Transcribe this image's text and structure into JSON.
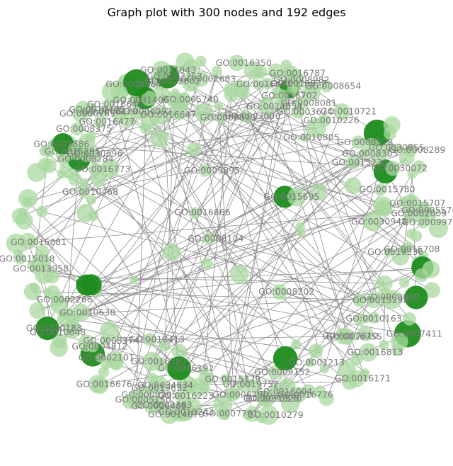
{
  "figure": {
    "title": "Graph plot with 300 nodes and 192 edges",
    "node_count": 300,
    "edge_count": 192,
    "node_color_light": "#a9d8a0",
    "node_color_dark": "#1e8c1e",
    "edge_color": "#8c8c8c",
    "label_color": "#7a7a7a"
  },
  "visible_labels": [
    "GO:0015695",
    "GO:0009895",
    "GO:0016866",
    "GO:0008104",
    "GO:0008202",
    "GO:0003674",
    "GO:0002009",
    "GO:0008081",
    "GO:0016773",
    "GO:0004812",
    "GO:0015179",
    "GO:0010638",
    "GO:0008375",
    "GO:0008092",
    "GO:0030855",
    "GO:0008982",
    "GO:0016776",
    "GO:0007411",
    "GO:0006468",
    "GO:0016708",
    "GO:0009886",
    "GO:0016646",
    "GO:0016647",
    "GO:0008395",
    "GO:0016813",
    "GO:0016702",
    "GO:0016413",
    "GO:0007610",
    "GO:0031325",
    "GO:0016676",
    "GO:0007791",
    "GO:0002683",
    "GO:0003006",
    "GO:0022602",
    "GO:0008284",
    "GO:0008528",
    "GO:0030948",
    "GO:0014070",
    "GO:0008564",
    "GO:0010468",
    "GO:0010243",
    "GO:0009152",
    "GO:0005150",
    "GO:0008654",
    "GO:0006790",
    "GO:0000785",
    "GO:0016881",
    "GO:0008170",
    "GO:0016861",
    "GO:0019752",
    "GO:0005576",
    "GO:0007267",
    "GO:0010721",
    "GO:0016837",
    "GO:0009975",
    "GO:0031406",
    "GO:0016755",
    "GO:0030072",
    "GO:0008374",
    "GO:0010648",
    "GO:0015295",
    "GO:0010163",
    "GO:0015018",
    "GO:0019336",
    "GO:0030336",
    "GO:0034834",
    "GO:0015238",
    "GO:0009080",
    "GO:0016192",
    "GO:0013958",
    "GO:0016350",
    "GO:0019632",
    "GO:0015707",
    "GO:0008289",
    "GO:0016223",
    "GO:0016171",
    "GO:0008305",
    "GO:0016004",
    "GO:0031843",
    "GO:0030696",
    "GO:0016787",
    "GO:0015780",
    "GO:0002101",
    "GO:0010805",
    "GO:0015298",
    "GO:0010183",
    "GO:0008363",
    "GO:0016477",
    "GO:0010226",
    "GO:0010405",
    "GO:0014834",
    "GO:0010279",
    "GO:0008829",
    "GO:0001213",
    "GO:0005740",
    "GO:0002266",
    "GO:0016587"
  ]
}
